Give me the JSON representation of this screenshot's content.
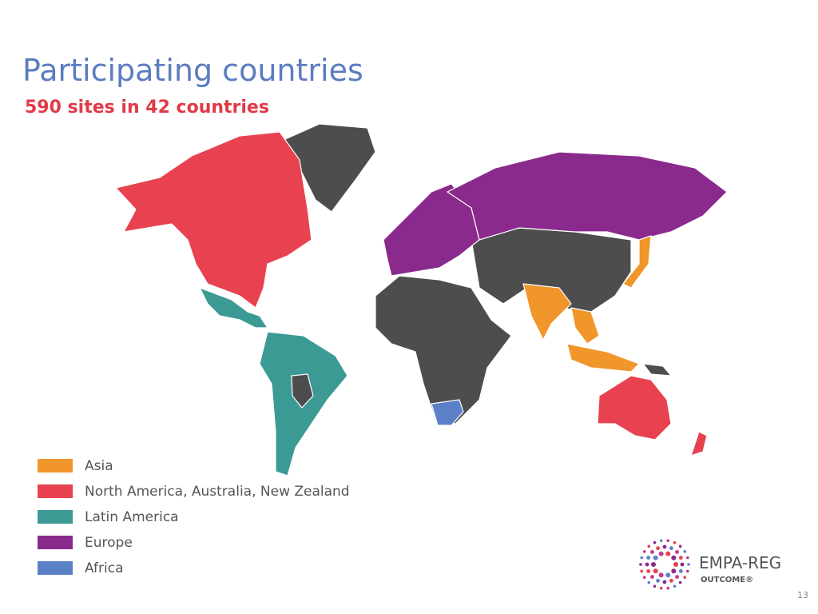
{
  "title": "Participating countries",
  "subtitle": "590 sites in 42 countries",
  "legend": [
    {
      "label": "Asia",
      "color": "#f0962a"
    },
    {
      "label": "North America, Australia, New Zealand",
      "color": "#e8414f"
    },
    {
      "label": "Latin America",
      "color": "#3c9a95"
    },
    {
      "label": "Europe",
      "color": "#8a2a8c"
    },
    {
      "label": "Africa",
      "color": "#5c80c8"
    }
  ],
  "logo": {
    "name": "EMPA-REG",
    "tagline": "OUTCOME®"
  },
  "page_number": 13
}
